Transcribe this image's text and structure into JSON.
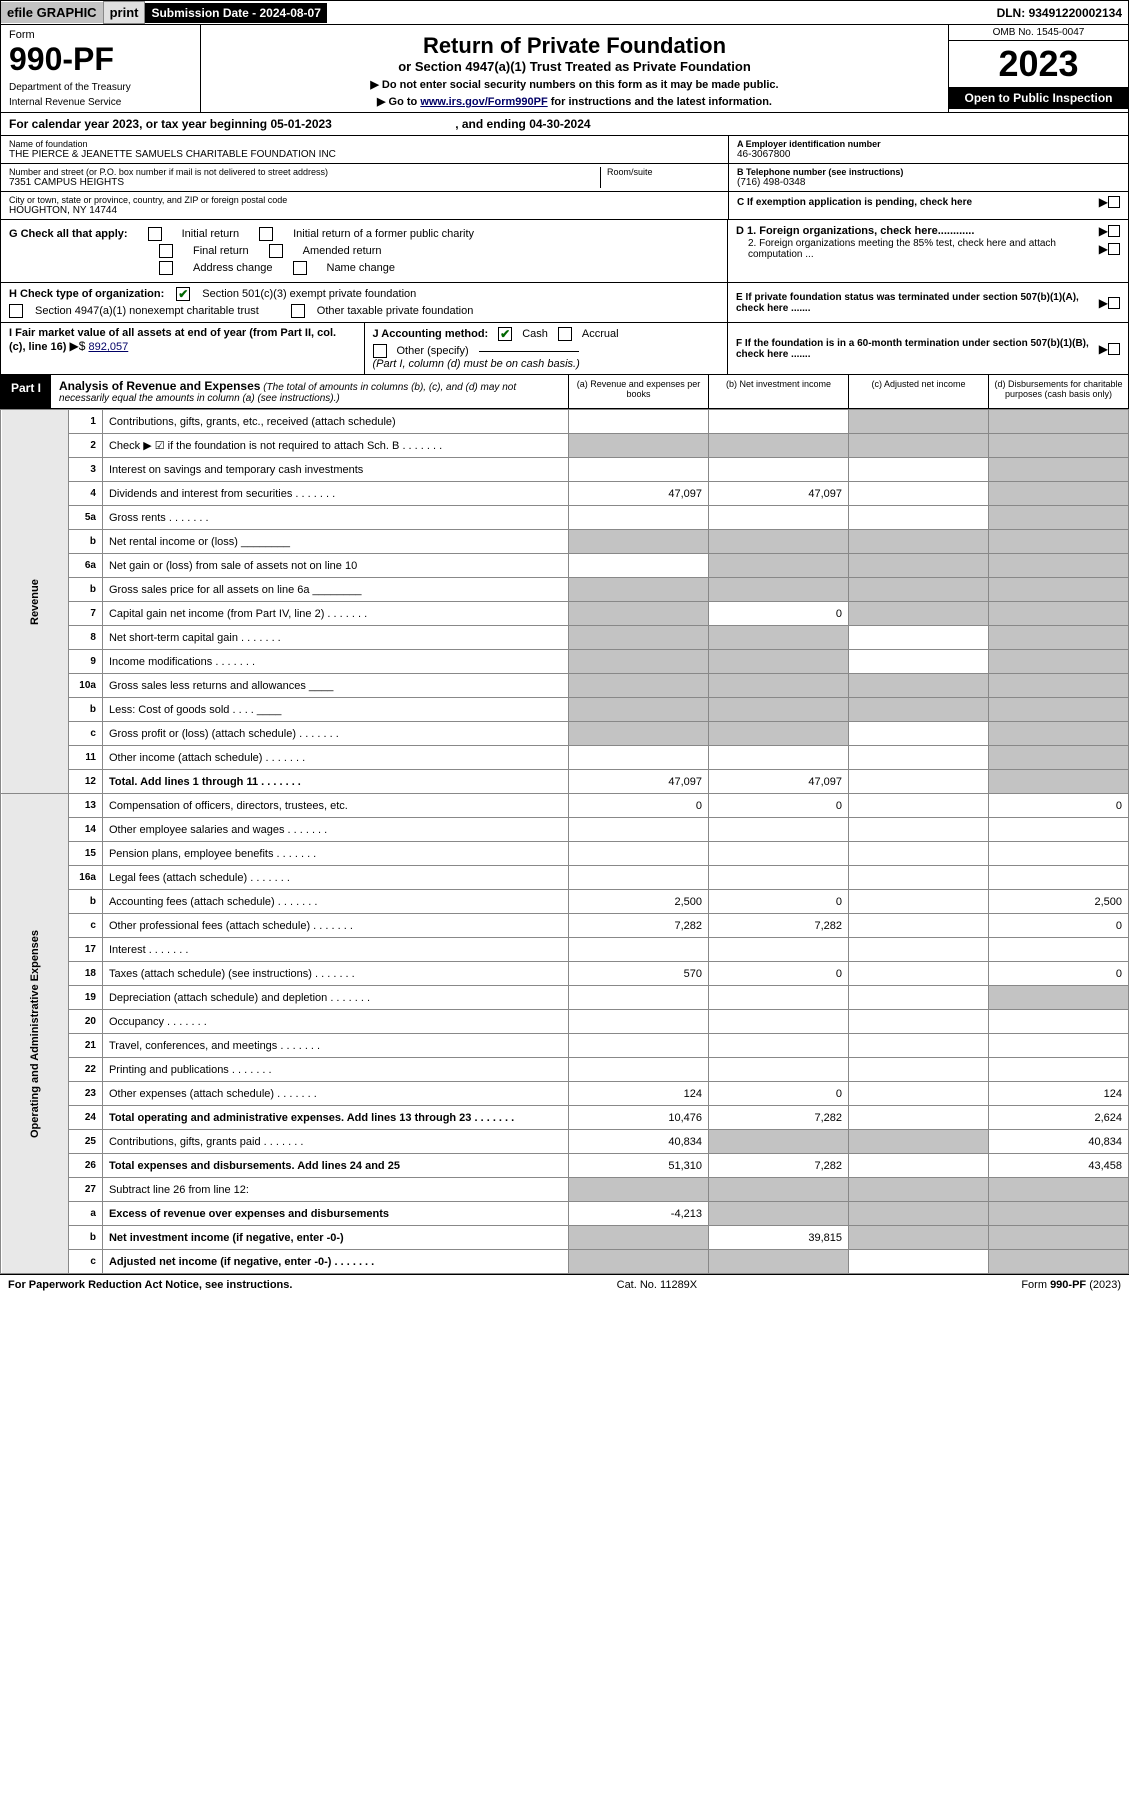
{
  "top": {
    "efile": "efile GRAPHIC",
    "print": "print",
    "sub_date_label": "Submission Date - ",
    "sub_date": "2024-08-07",
    "dln_label": "DLN: ",
    "dln": "93491220002134"
  },
  "header": {
    "form_label": "Form",
    "form_number": "990-PF",
    "dept1": "Department of the Treasury",
    "dept2": "Internal Revenue Service",
    "title": "Return of Private Foundation",
    "subtitle": "or Section 4947(a)(1) Trust Treated as Private Foundation",
    "note1": "▶ Do not enter social security numbers on this form as it may be made public.",
    "note2_pre": "▶ Go to ",
    "note2_link": "www.irs.gov/Form990PF",
    "note2_post": " for instructions and the latest information.",
    "omb": "OMB No. 1545-0047",
    "year": "2023",
    "open": "Open to Public Inspection"
  },
  "cal_year": {
    "pre": "For calendar year 2023, or tax year beginning ",
    "begin": "05-01-2023",
    "mid": " , and ending ",
    "end": "04-30-2024"
  },
  "info": {
    "name_label": "Name of foundation",
    "name": "THE PIERCE & JEANETTE SAMUELS CHARITABLE FOUNDATION INC",
    "addr_label": "Number and street (or P.O. box number if mail is not delivered to street address)",
    "addr": "7351 CAMPUS HEIGHTS",
    "room_label": "Room/suite",
    "city_label": "City or town, state or province, country, and ZIP or foreign postal code",
    "city": "HOUGHTON, NY  14744",
    "a_label": "A Employer identification number",
    "a_val": "46-3067800",
    "b_label": "B Telephone number (see instructions)",
    "b_val": "(716) 498-0348",
    "c_label": "C If exemption application is pending, check here",
    "d1_label": "D 1. Foreign organizations, check here............",
    "d2_label": "2. Foreign organizations meeting the 85% test, check here and attach computation ...",
    "e_label": "E  If private foundation status was terminated under section 507(b)(1)(A), check here .......",
    "f_label": "F  If the foundation is in a 60-month termination under section 507(b)(1)(B), check here ......."
  },
  "g": {
    "label": "G Check all that apply:",
    "initial": "Initial return",
    "initial_former": "Initial return of a former public charity",
    "final": "Final return",
    "amended": "Amended return",
    "addr_change": "Address change",
    "name_change": "Name change"
  },
  "h": {
    "label": "H Check type of organization:",
    "c3": "Section 501(c)(3) exempt private foundation",
    "s4947": "Section 4947(a)(1) nonexempt charitable trust",
    "other_tax": "Other taxable private foundation"
  },
  "i": {
    "label": "I Fair market value of all assets at end of year (from Part II, col. (c), line 16)",
    "arrow": "▶$",
    "val": "892,057"
  },
  "j": {
    "label": "J Accounting method:",
    "cash": "Cash",
    "accrual": "Accrual",
    "other": "Other (specify)",
    "note": "(Part I, column (d) must be on cash basis.)"
  },
  "part1": {
    "label": "Part I",
    "title": "Analysis of Revenue and Expenses",
    "title_note": "(The total of amounts in columns (b), (c), and (d) may not necessarily equal the amounts in column (a) (see instructions).)",
    "col_a": "(a) Revenue and expenses per books",
    "col_b": "(b) Net investment income",
    "col_c": "(c) Adjusted net income",
    "col_d": "(d) Disbursements for charitable purposes (cash basis only)"
  },
  "vert": {
    "revenue": "Revenue",
    "expenses": "Operating and Administrative Expenses"
  },
  "rows": [
    {
      "n": "1",
      "desc": "Contributions, gifts, grants, etc., received (attach schedule)",
      "a": "",
      "b": "",
      "c": "shade",
      "d": "shade"
    },
    {
      "n": "2",
      "desc": "Check ▶ ☑ if the foundation is not required to attach Sch. B",
      "a": "shade",
      "b": "shade",
      "c": "shade",
      "d": "shade",
      "dots": true
    },
    {
      "n": "3",
      "desc": "Interest on savings and temporary cash investments",
      "a": "",
      "b": "",
      "c": "",
      "d": "shade"
    },
    {
      "n": "4",
      "desc": "Dividends and interest from securities",
      "a": "47,097",
      "b": "47,097",
      "c": "",
      "d": "shade",
      "dots": true
    },
    {
      "n": "5a",
      "desc": "Gross rents",
      "a": "",
      "b": "",
      "c": "",
      "d": "shade",
      "dots": true
    },
    {
      "n": "b",
      "desc": "Net rental income or (loss) ________",
      "a": "shade",
      "b": "shade",
      "c": "shade",
      "d": "shade"
    },
    {
      "n": "6a",
      "desc": "Net gain or (loss) from sale of assets not on line 10",
      "a": "",
      "b": "shade",
      "c": "shade",
      "d": "shade"
    },
    {
      "n": "b",
      "desc": "Gross sales price for all assets on line 6a ________",
      "a": "shade",
      "b": "shade",
      "c": "shade",
      "d": "shade"
    },
    {
      "n": "7",
      "desc": "Capital gain net income (from Part IV, line 2)",
      "a": "shade",
      "b": "0",
      "c": "shade",
      "d": "shade",
      "dots": true
    },
    {
      "n": "8",
      "desc": "Net short-term capital gain",
      "a": "shade",
      "b": "shade",
      "c": "",
      "d": "shade",
      "dots": true
    },
    {
      "n": "9",
      "desc": "Income modifications",
      "a": "shade",
      "b": "shade",
      "c": "",
      "d": "shade",
      "dots": true
    },
    {
      "n": "10a",
      "desc": "Gross sales less returns and allowances ____",
      "a": "shade",
      "b": "shade",
      "c": "shade",
      "d": "shade"
    },
    {
      "n": "b",
      "desc": "Less: Cost of goods sold   .  .  .  .  ____",
      "a": "shade",
      "b": "shade",
      "c": "shade",
      "d": "shade"
    },
    {
      "n": "c",
      "desc": "Gross profit or (loss) (attach schedule)",
      "a": "shade",
      "b": "shade",
      "c": "",
      "d": "shade",
      "dots": true
    },
    {
      "n": "11",
      "desc": "Other income (attach schedule)",
      "a": "",
      "b": "",
      "c": "",
      "d": "shade",
      "dots": true
    },
    {
      "n": "12",
      "desc": "Total. Add lines 1 through 11",
      "a": "47,097",
      "b": "47,097",
      "c": "",
      "d": "shade",
      "bold": true,
      "dots": true
    },
    {
      "n": "13",
      "desc": "Compensation of officers, directors, trustees, etc.",
      "a": "0",
      "b": "0",
      "c": "",
      "d": "0"
    },
    {
      "n": "14",
      "desc": "Other employee salaries and wages",
      "a": "",
      "b": "",
      "c": "",
      "d": "",
      "dots": true
    },
    {
      "n": "15",
      "desc": "Pension plans, employee benefits",
      "a": "",
      "b": "",
      "c": "",
      "d": "",
      "dots": true
    },
    {
      "n": "16a",
      "desc": "Legal fees (attach schedule)",
      "a": "",
      "b": "",
      "c": "",
      "d": "",
      "dots": true
    },
    {
      "n": "b",
      "desc": "Accounting fees (attach schedule)",
      "a": "2,500",
      "b": "0",
      "c": "",
      "d": "2,500",
      "dots": true
    },
    {
      "n": "c",
      "desc": "Other professional fees (attach schedule)",
      "a": "7,282",
      "b": "7,282",
      "c": "",
      "d": "0",
      "dots": true
    },
    {
      "n": "17",
      "desc": "Interest",
      "a": "",
      "b": "",
      "c": "",
      "d": "",
      "dots": true
    },
    {
      "n": "18",
      "desc": "Taxes (attach schedule) (see instructions)",
      "a": "570",
      "b": "0",
      "c": "",
      "d": "0",
      "dots": true
    },
    {
      "n": "19",
      "desc": "Depreciation (attach schedule) and depletion",
      "a": "",
      "b": "",
      "c": "",
      "d": "shade",
      "dots": true
    },
    {
      "n": "20",
      "desc": "Occupancy",
      "a": "",
      "b": "",
      "c": "",
      "d": "",
      "dots": true
    },
    {
      "n": "21",
      "desc": "Travel, conferences, and meetings",
      "a": "",
      "b": "",
      "c": "",
      "d": "",
      "dots": true
    },
    {
      "n": "22",
      "desc": "Printing and publications",
      "a": "",
      "b": "",
      "c": "",
      "d": "",
      "dots": true
    },
    {
      "n": "23",
      "desc": "Other expenses (attach schedule)",
      "a": "124",
      "b": "0",
      "c": "",
      "d": "124",
      "dots": true
    },
    {
      "n": "24",
      "desc": "Total operating and administrative expenses. Add lines 13 through 23",
      "a": "10,476",
      "b": "7,282",
      "c": "",
      "d": "2,624",
      "bold": true,
      "dots": true
    },
    {
      "n": "25",
      "desc": "Contributions, gifts, grants paid",
      "a": "40,834",
      "b": "shade",
      "c": "shade",
      "d": "40,834",
      "dots": true
    },
    {
      "n": "26",
      "desc": "Total expenses and disbursements. Add lines 24 and 25",
      "a": "51,310",
      "b": "7,282",
      "c": "",
      "d": "43,458",
      "bold": true
    },
    {
      "n": "27",
      "desc": "Subtract line 26 from line 12:",
      "a": "shade",
      "b": "shade",
      "c": "shade",
      "d": "shade"
    },
    {
      "n": "a",
      "desc": "Excess of revenue over expenses and disbursements",
      "a": "-4,213",
      "b": "shade",
      "c": "shade",
      "d": "shade",
      "bold": true
    },
    {
      "n": "b",
      "desc": "Net investment income (if negative, enter -0-)",
      "a": "shade",
      "b": "39,815",
      "c": "shade",
      "d": "shade",
      "bold": true
    },
    {
      "n": "c",
      "desc": "Adjusted net income (if negative, enter -0-)",
      "a": "shade",
      "b": "shade",
      "c": "",
      "d": "shade",
      "bold": true,
      "dots": true
    }
  ],
  "footer": {
    "left": "For Paperwork Reduction Act Notice, see instructions.",
    "mid": "Cat. No. 11289X",
    "right": "Form 990-PF (2023)"
  }
}
